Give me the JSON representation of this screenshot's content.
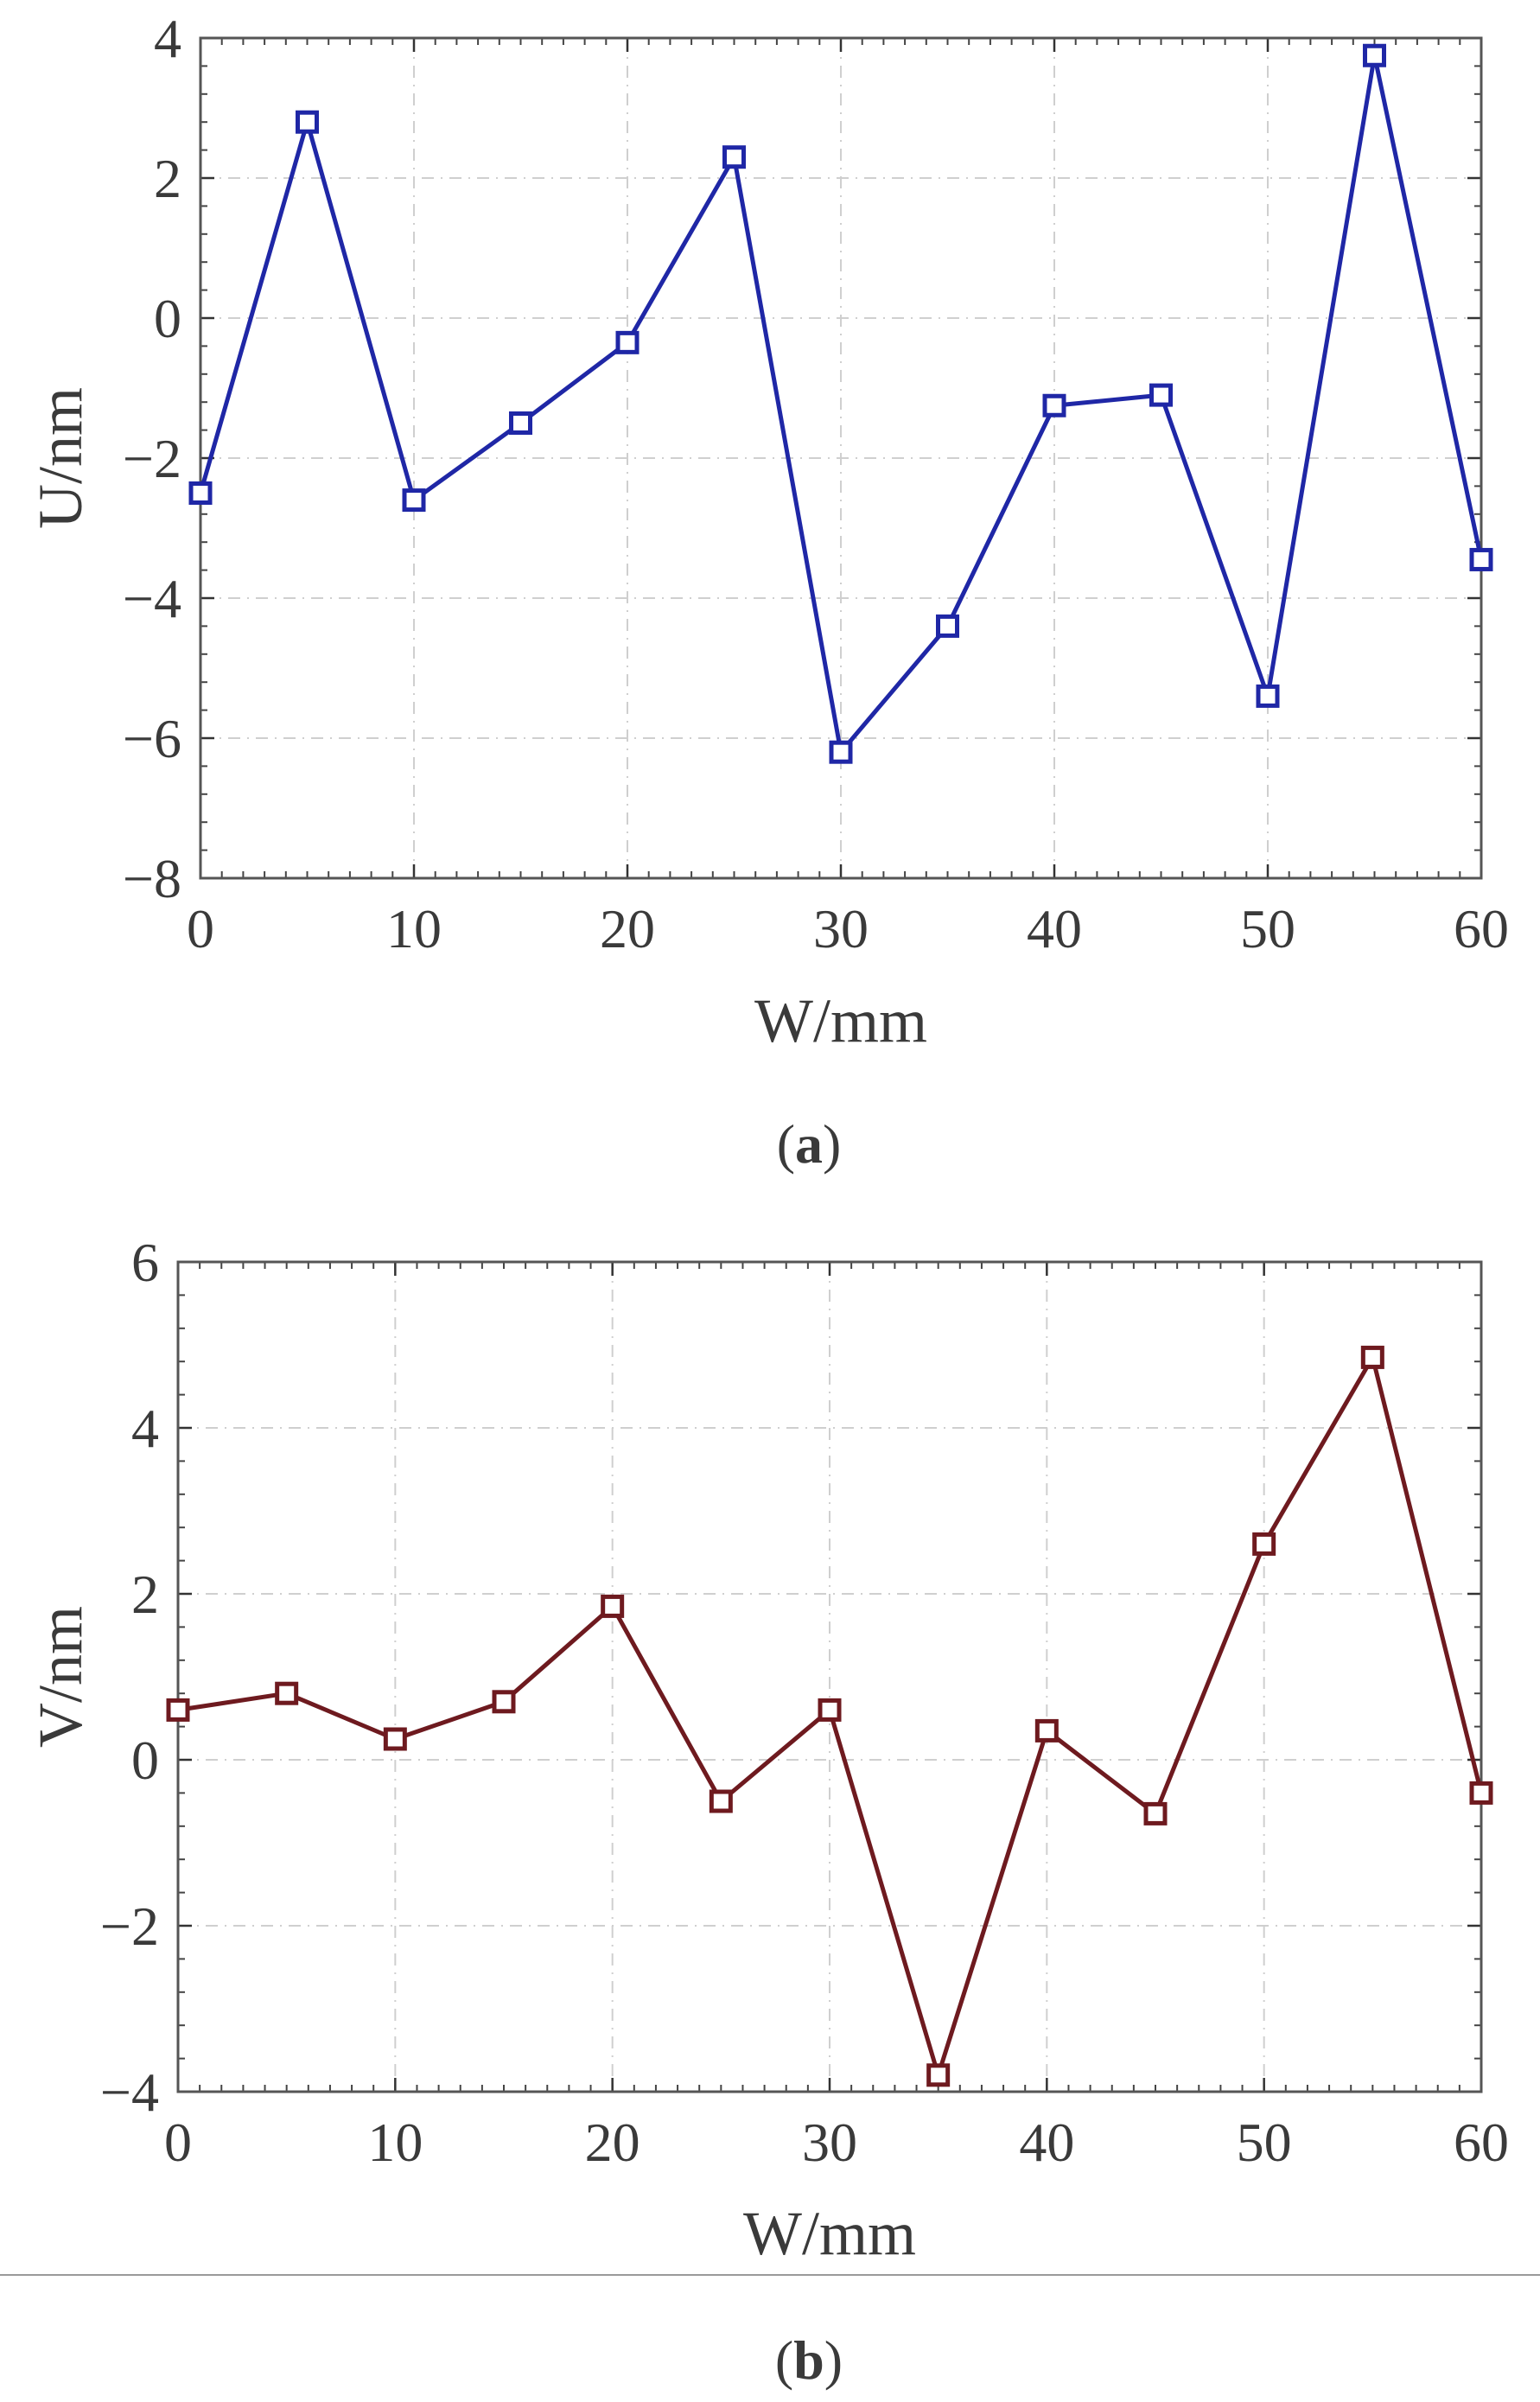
{
  "figure": {
    "panel_a_label": "a",
    "panel_b_label": "b"
  },
  "chart_data": [
    {
      "type": "line",
      "panel": "a",
      "title": "",
      "xlabel": "W/mm",
      "ylabel": "U/nm",
      "xlim": [
        0,
        60
      ],
      "ylim": [
        -8,
        4
      ],
      "xticks": [
        0,
        10,
        20,
        30,
        40,
        50,
        60
      ],
      "yticks": [
        -8,
        -6,
        -4,
        -2,
        0,
        2,
        4
      ],
      "grid": true,
      "marker": "square",
      "color": "#1f27a6",
      "series": [
        {
          "name": "U",
          "x": [
            0,
            5,
            10,
            15,
            20,
            25,
            30,
            35,
            40,
            45,
            50,
            55,
            60
          ],
          "y": [
            -2.5,
            2.8,
            -2.6,
            -1.5,
            -0.35,
            2.3,
            -6.2,
            -4.4,
            -1.25,
            -1.1,
            -5.4,
            3.75,
            -3.45
          ]
        }
      ]
    },
    {
      "type": "line",
      "panel": "b",
      "title": "",
      "xlabel": "W/mm",
      "ylabel": "V/nm",
      "xlim": [
        0,
        60
      ],
      "ylim": [
        -4,
        6
      ],
      "xticks": [
        0,
        10,
        20,
        30,
        40,
        50,
        60
      ],
      "yticks": [
        -4,
        -2,
        0,
        2,
        4,
        6
      ],
      "grid": true,
      "marker": "square",
      "color": "#6e1a1f",
      "series": [
        {
          "name": "V",
          "x": [
            0,
            5,
            10,
            15,
            20,
            25,
            30,
            35,
            40,
            45,
            50,
            55,
            60
          ],
          "y": [
            0.6,
            0.8,
            0.25,
            0.7,
            1.85,
            -0.5,
            0.6,
            -3.8,
            0.35,
            -0.65,
            2.6,
            4.85,
            -0.4
          ]
        }
      ]
    }
  ]
}
